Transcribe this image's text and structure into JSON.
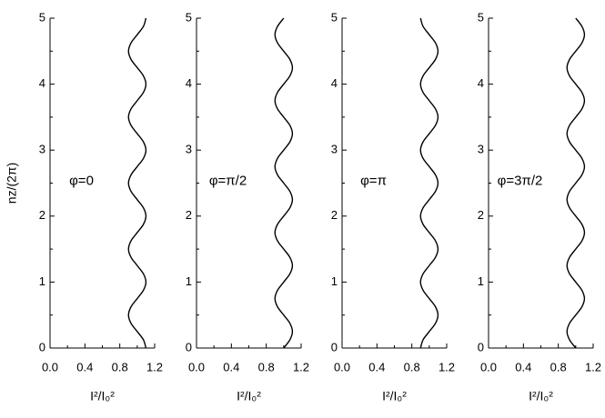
{
  "chart_data": [
    {
      "type": "line",
      "annotation": "φ=0",
      "ylabel": "nz/(2π)",
      "xlabel": "I²/I₀²",
      "xlim": [
        0,
        1.2
      ],
      "ylim": [
        0,
        5
      ],
      "xticks": [
        {
          "value": 0,
          "label": "0.0"
        },
        0.4,
        0.8,
        1.2
      ],
      "yticks": [
        0,
        1,
        2,
        3,
        4,
        5
      ],
      "series": [
        {
          "color": "#000000",
          "x": [
            1.1,
            1.071,
            1,
            0.929,
            0.9,
            0.929,
            1,
            1.071,
            1.1,
            1.071,
            1,
            0.929,
            0.9,
            0.929,
            1,
            1.071,
            1.1,
            1.071,
            1,
            0.929,
            0.9,
            0.929,
            1,
            1.071,
            1.1,
            1.071,
            1,
            0.929,
            0.9,
            0.929,
            1,
            1.071,
            1.1,
            1.071,
            1,
            0.929,
            0.9,
            0.929,
            1,
            1.071,
            1.1
          ],
          "y": [
            0,
            0.125,
            0.25,
            0.375,
            0.5,
            0.625,
            0.75,
            0.875,
            1,
            1.125,
            1.25,
            1.375,
            1.5,
            1.625,
            1.75,
            1.875,
            2,
            2.125,
            2.25,
            2.375,
            2.5,
            2.625,
            2.75,
            2.875,
            3,
            3.125,
            3.25,
            3.375,
            3.5,
            3.625,
            3.75,
            3.875,
            4,
            4.125,
            4.25,
            4.375,
            4.5,
            4.625,
            4.75,
            4.875,
            5
          ]
        }
      ]
    },
    {
      "type": "line",
      "annotation": "φ=π/2",
      "xlabel": "I²/I₀²",
      "xlim": [
        0,
        1.2
      ],
      "ylim": [
        0,
        5
      ],
      "xticks": [
        {
          "value": 0,
          "label": "0.0"
        },
        0.4,
        0.8,
        1.2
      ],
      "yticks": [
        0,
        1,
        2,
        3,
        4,
        5
      ],
      "series": [
        {
          "color": "#000000",
          "x": [
            1,
            1.071,
            1.1,
            1.071,
            1,
            0.929,
            0.9,
            0.929,
            1,
            1.071,
            1.1,
            1.071,
            1,
            0.929,
            0.9,
            0.929,
            1,
            1.071,
            1.1,
            1.071,
            1,
            0.929,
            0.9,
            0.929,
            1,
            1.071,
            1.1,
            1.071,
            1,
            0.929,
            0.9,
            0.929,
            1,
            1.071,
            1.1,
            1.071,
            1,
            0.929,
            0.9,
            0.929,
            1
          ],
          "y": [
            0,
            0.125,
            0.25,
            0.375,
            0.5,
            0.625,
            0.75,
            0.875,
            1,
            1.125,
            1.25,
            1.375,
            1.5,
            1.625,
            1.75,
            1.875,
            2,
            2.125,
            2.25,
            2.375,
            2.5,
            2.625,
            2.75,
            2.875,
            3,
            3.125,
            3.25,
            3.375,
            3.5,
            3.625,
            3.75,
            3.875,
            4,
            4.125,
            4.25,
            4.375,
            4.5,
            4.625,
            4.75,
            4.875,
            5
          ]
        }
      ]
    },
    {
      "type": "line",
      "annotation": "φ=π",
      "xlabel": "I²/I₀²",
      "xlim": [
        0,
        1.2
      ],
      "ylim": [
        0,
        5
      ],
      "xticks": [
        {
          "value": 0,
          "label": "0.0"
        },
        0.4,
        0.8,
        1.2
      ],
      "yticks": [
        0,
        1,
        2,
        3,
        4,
        5
      ],
      "series": [
        {
          "color": "#000000",
          "x": [
            0.9,
            0.929,
            1,
            1.071,
            1.1,
            1.071,
            1,
            0.929,
            0.9,
            0.929,
            1,
            1.071,
            1.1,
            1.071,
            1,
            0.929,
            0.9,
            0.929,
            1,
            1.071,
            1.1,
            1.071,
            1,
            0.929,
            0.9,
            0.929,
            1,
            1.071,
            1.1,
            1.071,
            1,
            0.929,
            0.9,
            0.929,
            1,
            1.071,
            1.1,
            1.071,
            1,
            0.929,
            0.9
          ],
          "y": [
            0,
            0.125,
            0.25,
            0.375,
            0.5,
            0.625,
            0.75,
            0.875,
            1,
            1.125,
            1.25,
            1.375,
            1.5,
            1.625,
            1.75,
            1.875,
            2,
            2.125,
            2.25,
            2.375,
            2.5,
            2.625,
            2.75,
            2.875,
            3,
            3.125,
            3.25,
            3.375,
            3.5,
            3.625,
            3.75,
            3.875,
            4,
            4.125,
            4.25,
            4.375,
            4.5,
            4.625,
            4.75,
            4.875,
            5
          ]
        }
      ]
    },
    {
      "type": "line",
      "annotation": "φ=3π/2",
      "xlabel": "I²/I₀²",
      "xlim": [
        0,
        1.2
      ],
      "ylim": [
        0,
        5
      ],
      "xticks": [
        {
          "value": 0,
          "label": "0.0"
        },
        0.4,
        0.8,
        1.2
      ],
      "yticks": [
        0,
        1,
        2,
        3,
        4,
        5
      ],
      "series": [
        {
          "color": "#000000",
          "x": [
            1,
            0.929,
            0.9,
            0.929,
            1,
            1.071,
            1.1,
            1.071,
            1,
            0.929,
            0.9,
            0.929,
            1,
            1.071,
            1.1,
            1.071,
            1,
            0.929,
            0.9,
            0.929,
            1,
            1.071,
            1.1,
            1.071,
            1,
            0.929,
            0.9,
            0.929,
            1,
            1.071,
            1.1,
            1.071,
            1,
            0.929,
            0.9,
            0.929,
            1,
            1.071,
            1.1,
            1.071,
            1
          ],
          "y": [
            0,
            0.125,
            0.25,
            0.375,
            0.5,
            0.625,
            0.75,
            0.875,
            1,
            1.125,
            1.25,
            1.375,
            1.5,
            1.625,
            1.75,
            1.875,
            2,
            2.125,
            2.25,
            2.375,
            2.5,
            2.625,
            2.75,
            2.875,
            3,
            3.125,
            3.25,
            3.375,
            3.5,
            3.625,
            3.75,
            3.875,
            4,
            4.125,
            4.25,
            4.375,
            4.5,
            4.625,
            4.75,
            4.875,
            5
          ]
        }
      ]
    }
  ]
}
